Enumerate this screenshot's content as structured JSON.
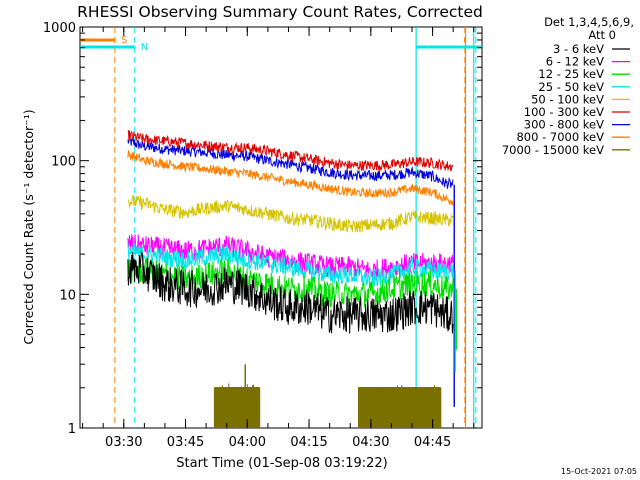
{
  "chart_data": {
    "type": "line",
    "title": "RHESSI Observing Summary Count Rates, Corrected",
    "xlabel": "Start Time (01-Sep-08 03:19:22)",
    "ylabel": "Corrected Count Rate (s⁻¹ detector⁻¹)",
    "y_scale": "log",
    "ylim": [
      1,
      1000
    ],
    "y_ticks": [
      1,
      10,
      100,
      1000
    ],
    "y_tick_labels": [
      "1",
      "10",
      "100",
      "1000"
    ],
    "xlim": [
      "03:19:22",
      "04:57:00"
    ],
    "x_ticks": [
      "03:30",
      "03:45",
      "04:00",
      "04:15",
      "04:30",
      "04:45"
    ],
    "timestamp": "15-Oct-2021 07:05",
    "legend": {
      "placement": "right",
      "header": [
        "Det 1,3,4,5,6,9,",
        "Att 0"
      ],
      "entries": [
        {
          "label": "3 - 6 keV",
          "color": "#000000"
        },
        {
          "label": "6 - 12 keV",
          "color": "#ff00ff"
        },
        {
          "label": "12 - 25 keV",
          "color": "#00dd00"
        },
        {
          "label": "25 - 50 keV",
          "color": "#00e5e5"
        },
        {
          "label": "50 - 100 keV",
          "color": "#d4c400"
        },
        {
          "label": "100 - 300 keV",
          "color": "#e00000"
        },
        {
          "label": "300 - 800 keV",
          "color": "#0000e0"
        },
        {
          "label": "800 - 7000 keV",
          "color": "#ff8000"
        },
        {
          "label": "7000 - 15000 keV",
          "color": "#7a7000"
        }
      ]
    },
    "flag_markers": [
      {
        "label": "S",
        "color": "#ff8000",
        "style": "dashed",
        "time": "03:27:50",
        "bar_end": "03:27:50"
      },
      {
        "label": "N",
        "color": "#00e5e5",
        "style": "dashed",
        "time": "03:32:40",
        "bar_end": "03:32:40"
      }
    ],
    "solid_lines": [
      {
        "color": "#00e5e5",
        "time": "04:41:00"
      },
      {
        "color": "#ff8000",
        "time": "04:53:00"
      },
      {
        "color": "#00e5e5",
        "time": "04:55:00"
      }
    ],
    "dashed_lines_end": [
      {
        "color": "#ff8000",
        "time": "04:52:50"
      },
      {
        "color": "#00e5e5",
        "time": "04:55:30"
      }
    ],
    "series_x": [
      "03:31",
      "03:35",
      "03:40",
      "03:45",
      "03:50",
      "03:55",
      "04:00",
      "04:05",
      "04:10",
      "04:15",
      "04:20",
      "04:25",
      "04:30",
      "04:35",
      "04:40",
      "04:45",
      "04:48",
      "04:50"
    ],
    "series": [
      {
        "name": "300 - 800 keV",
        "color": "#0000e0",
        "noise": 0.04,
        "values": [
          140,
          128,
          122,
          118,
          115,
          110,
          108,
          100,
          94,
          88,
          82,
          78,
          77,
          78,
          82,
          76,
          68,
          66
        ]
      },
      {
        "name": "100 - 300 keV",
        "color": "#e00000",
        "noise": 0.04,
        "values": [
          155,
          145,
          140,
          135,
          130,
          126,
          125,
          118,
          110,
          103,
          96,
          92,
          92,
          93,
          98,
          96,
          92,
          90
        ]
      },
      {
        "name": "800 - 7000 keV",
        "color": "#ff8000",
        "noise": 0.035,
        "values": [
          112,
          100,
          95,
          90,
          87,
          83,
          80,
          75,
          70,
          66,
          62,
          58,
          57,
          58,
          62,
          58,
          52,
          50
        ]
      },
      {
        "name": "50 - 100 keV",
        "color": "#d4c400",
        "noise": 0.05,
        "values": [
          50,
          48,
          43,
          41,
          44,
          46,
          43,
          40,
          37,
          36,
          34,
          32,
          33,
          34,
          38,
          37,
          36,
          36
        ]
      },
      {
        "name": "6 - 12 keV",
        "color": "#ff00ff",
        "noise": 0.08,
        "values": [
          24,
          23,
          22,
          21,
          22,
          23,
          21,
          19,
          18,
          17,
          16,
          16,
          15,
          16,
          17,
          17,
          17,
          17
        ]
      },
      {
        "name": "25 - 50 keV",
        "color": "#00e5e5",
        "noise": 0.07,
        "values": [
          21,
          20,
          19,
          18,
          19,
          20,
          18,
          17,
          16,
          15,
          14,
          14,
          13,
          14,
          16,
          15,
          15,
          15
        ]
      },
      {
        "name": "12 - 25 keV",
        "color": "#00dd00",
        "noise": 0.1,
        "values": [
          15,
          15,
          14,
          13,
          14,
          15,
          13,
          12,
          11,
          11,
          10,
          10,
          10,
          11,
          12,
          12,
          11,
          11
        ]
      },
      {
        "name": "3 - 6 keV",
        "color": "#000000",
        "noise": 0.14,
        "values": [
          16,
          15,
          12,
          11,
          11,
          12,
          11,
          9,
          8,
          8,
          7,
          7,
          7,
          7,
          8,
          8,
          7,
          7
        ]
      }
    ],
    "bursts": {
      "name": "7000 - 15000 keV",
      "color": "#7a7000",
      "low": 1,
      "high": 2,
      "spike": 3,
      "spike_time": "03:59:30",
      "ranges": [
        [
          "03:52:00",
          "04:03:00"
        ],
        [
          "04:27:00",
          "04:47:00"
        ]
      ]
    },
    "drop_off": {
      "time": "04:50:30",
      "low": 1.2,
      "colors": [
        "#0000e0",
        "#00e5e5",
        "#00dd00"
      ]
    }
  }
}
